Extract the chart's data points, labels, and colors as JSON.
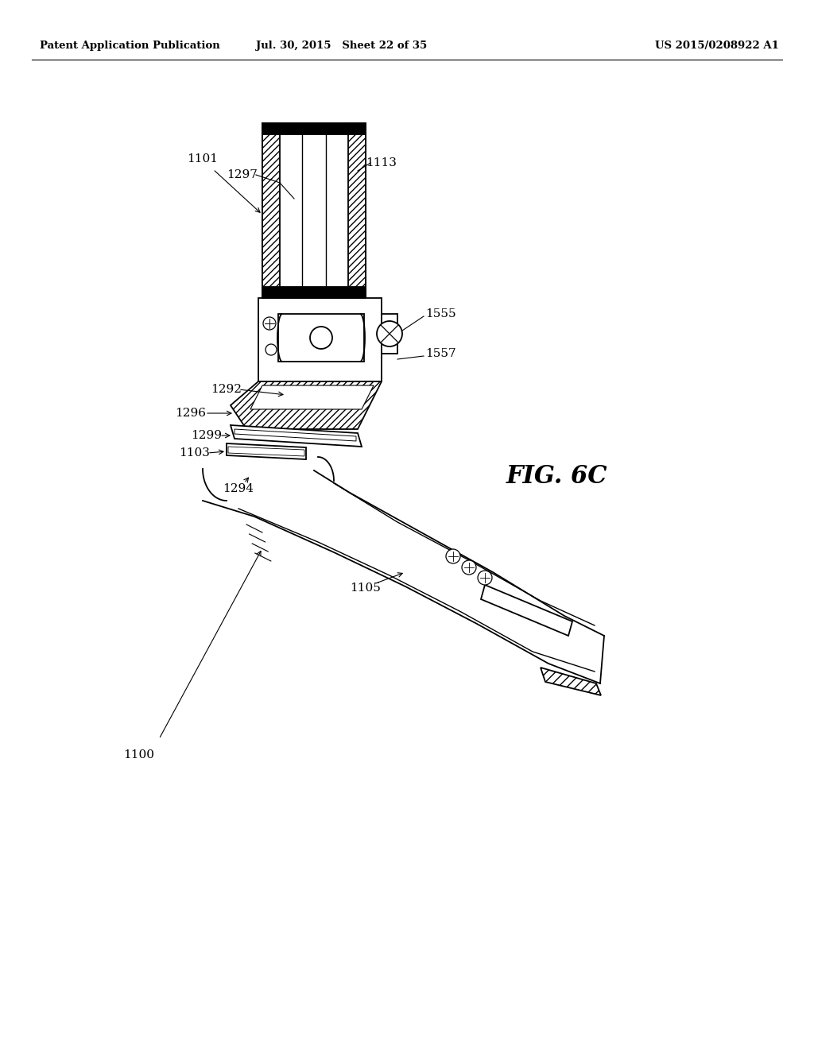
{
  "bg_color": "#ffffff",
  "header_left": "Patent Application Publication",
  "header_center": "Jul. 30, 2015   Sheet 22 of 35",
  "header_right": "US 2015/0208922 A1",
  "fig_label": "FIG. 6C",
  "line_color": "#000000",
  "hatch_color": "#000000"
}
